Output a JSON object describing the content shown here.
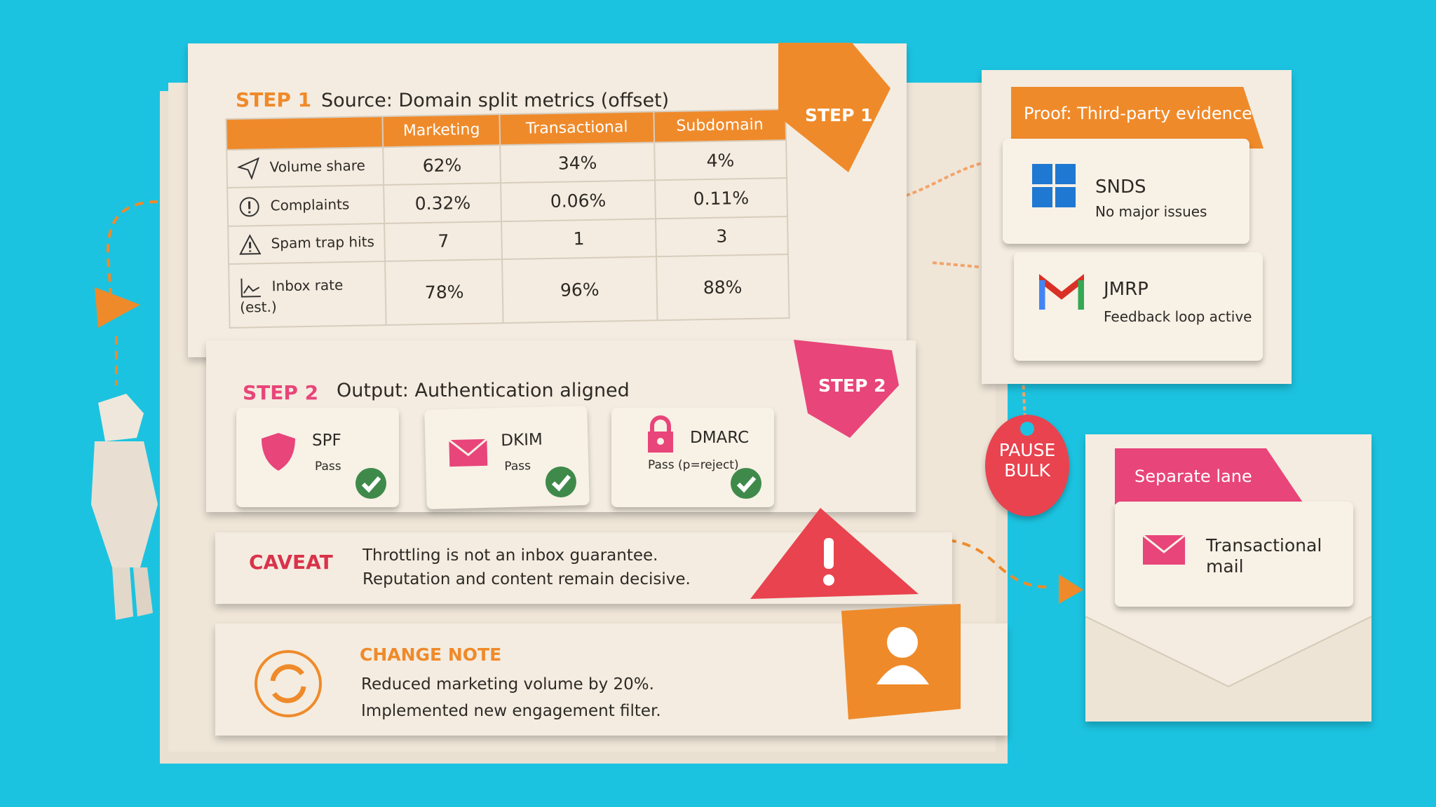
{
  "step1": {
    "label": "STEP 1",
    "title": "Source: Domain split metrics (offset)",
    "tab": "STEP 1",
    "table": {
      "header": [
        "Marketing",
        "Transactional",
        "Subdomain"
      ],
      "rows": [
        [
          "Volume share",
          "62%",
          "34%",
          "4%"
        ],
        [
          "Complaints",
          "0.32%",
          "0.06%",
          "0.11%"
        ],
        [
          "Spam trap hits",
          "7",
          "1",
          "3"
        ],
        [
          "Inbox rate (est.)",
          "78%",
          "96%",
          "88%"
        ]
      ]
    }
  },
  "step2": {
    "label": "STEP 2",
    "title": "Output: Authentication aligned",
    "tab": "STEP 2",
    "items": [
      {
        "name": "SPF",
        "status": "Pass"
      },
      {
        "name": "DKIM",
        "status": "Pass"
      },
      {
        "name": "DMARC",
        "status": "Pass (p=reject)"
      }
    ]
  },
  "caveat": {
    "label": "CAVEAT",
    "lines": [
      "Throttling is not an inbox guarantee.",
      "Reputation and content remain decisive."
    ]
  },
  "change_note": {
    "label": "CHANGE NOTE",
    "lines": [
      "Reduced marketing volume by 20%.",
      "Implemented new engagement filter."
    ]
  },
  "proof": {
    "title": "Proof: Third-party evidence",
    "items": [
      {
        "name": "SNDS",
        "detail": "No major issues"
      },
      {
        "name": "JMRP",
        "detail": "Feedback loop active"
      }
    ]
  },
  "tag": {
    "lines": [
      "PAUSE",
      "BULK"
    ]
  },
  "lane": {
    "title": "Separate lane",
    "lines": [
      "Transactional",
      "mail"
    ]
  }
}
